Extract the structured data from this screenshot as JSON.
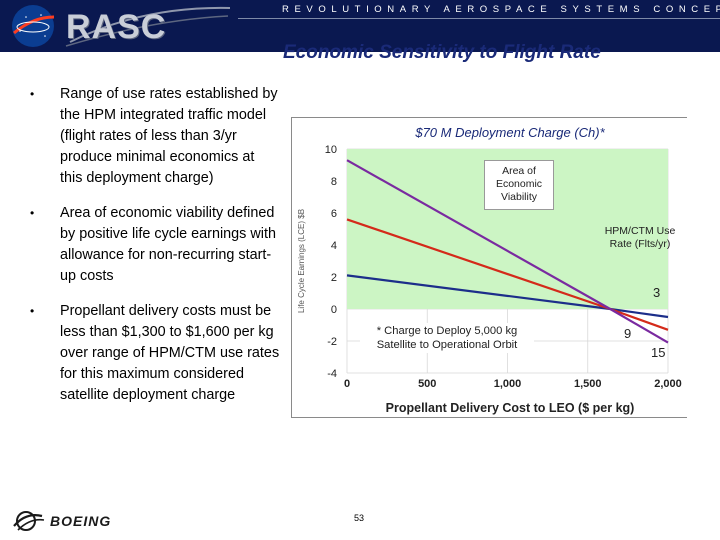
{
  "header": {
    "org": "NASA",
    "logo_text": "RASC",
    "tagline": "REVOLUTIONARY AEROSPACE SYSTEMS CONCEPTS"
  },
  "slide": {
    "title": "Economic Sensitivity to Flight Rate",
    "page_number": "53"
  },
  "bullets": [
    {
      "text": "Range of use rates established by the HPM integrated traffic model (flight rates of less than 3/yr produce minimal economics at this deployment charge)"
    },
    {
      "text": " Area of economic viability defined by positive life cycle earnings with allowance for non-recurring start-up costs"
    },
    {
      "text": "Propellant delivery costs must be less than $1,300 to $1,600 per kg over range of HPM/CTM use rates for this maximum considered satellite deployment charge"
    }
  ],
  "footer": {
    "company": "BOEING"
  },
  "chart_data": {
    "type": "line",
    "title": "$70 M Deployment Charge (Ch)*",
    "xlabel": "Propellant Delivery Cost to LEO ($ per kg)",
    "ylabel": "Life Cycle Earnings (LCE) $B",
    "xlim": [
      0,
      2000
    ],
    "ylim": [
      -4,
      10
    ],
    "x_ticks": [
      0,
      500,
      1000,
      1500,
      2000
    ],
    "x_tick_labels": [
      "0",
      "500",
      "1,000",
      "1,500",
      "2,000"
    ],
    "y_ticks": [
      -4,
      -2,
      0,
      2,
      4,
      6,
      8,
      10
    ],
    "y_tick_labels": [
      "-4",
      "-2",
      "0",
      "2",
      "4",
      "6",
      "8",
      "10"
    ],
    "viability_region": {
      "x": [
        0,
        2000
      ],
      "y": [
        0,
        10
      ],
      "color": "#ccf5c4"
    },
    "series": [
      {
        "name": "3",
        "color": "#1c2e8a",
        "x": [
          0,
          1640,
          2000
        ],
        "y": [
          2.1,
          0.0,
          -0.5
        ]
      },
      {
        "name": "9",
        "color": "#d42a1a",
        "x": [
          0,
          1640,
          2000
        ],
        "y": [
          5.6,
          0.0,
          -1.3
        ]
      },
      {
        "name": "15",
        "color": "#7a2aa0",
        "x": [
          0,
          1640,
          2000
        ],
        "y": [
          9.3,
          0.0,
          -2.1
        ]
      }
    ],
    "annotations": {
      "viability_label": "Area of Economic Viability",
      "use_rate_label": "HPM/CTM Use Rate (Flts/yr)",
      "footnote": "* Charge to Deploy 5,000 kg Satellite to Operational Orbit"
    },
    "grid": true,
    "legend": "none"
  },
  "colors": {
    "header_bg": "#0a1850",
    "title": "#1a2a78",
    "viability_fill": "#ccf5c4",
    "chart_title": "#1a2a78"
  }
}
